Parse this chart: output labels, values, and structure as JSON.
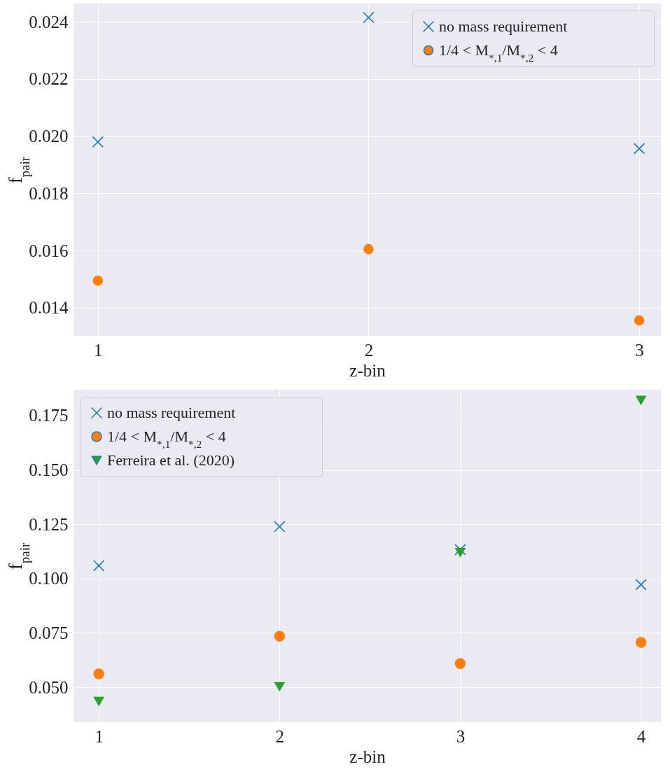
{
  "chart_data": [
    {
      "type": "scatter",
      "xlabel": "z-bin",
      "ylabel": "f$_{pair}$",
      "xlim": [
        0.91,
        3.08
      ],
      "xticks": [
        1,
        2,
        3
      ],
      "ylim": [
        0.01302,
        0.02464
      ],
      "yticks": [
        0.014,
        0.016,
        0.018,
        {
          "value": 0.02,
          "label": "0.020"
        },
        0.022,
        0.024
      ],
      "grid": true,
      "legend": "top right",
      "series": [
        {
          "name": "no mass requirement",
          "color": "#1f77b4",
          "marker": "cross",
          "x": [
            1,
            2,
            3
          ],
          "values": [
            0.0198,
            0.02415,
            0.01957
          ]
        },
        {
          "name": "1/4 < M$_{*,1}$/M$_{*,2}$ < 4",
          "color": "#ff7f0e",
          "marker": "circle",
          "x": [
            1,
            2,
            3
          ],
          "values": [
            0.01495,
            0.01605,
            0.01356
          ]
        }
      ]
    },
    {
      "type": "scatter",
      "xlabel": "z-bin",
      "ylabel": "f$_{pair}$",
      "xlim": [
        0.86,
        4.11
      ],
      "xticks": [
        1,
        2,
        3,
        4
      ],
      "ylim": [
        0.0339,
        0.1869
      ],
      "yticks": [
        {
          "value": 0.05,
          "label": "0.050"
        },
        0.075,
        {
          "value": 0.1,
          "label": "0.100"
        },
        0.125,
        {
          "value": 0.15,
          "label": "0.150"
        },
        0.175
      ],
      "grid": true,
      "legend": "top left",
      "series": [
        {
          "name": "no mass requirement",
          "color": "#1f77b4",
          "marker": "cross",
          "x": [
            1,
            2,
            3,
            4
          ],
          "values": [
            0.1059,
            0.1239,
            0.1133,
            0.0972
          ]
        },
        {
          "name": "1/4 < M$_{*,1}$/M$_{*,2}$ < 4",
          "color": "#ff7f0e",
          "marker": "circle",
          "x": [
            1,
            2,
            3,
            4
          ],
          "values": [
            0.0561,
            0.0734,
            0.0609,
            0.0706
          ]
        },
        {
          "name": "Ferreira et al. (2020)",
          "color": "#2ca02c",
          "marker": "triangle",
          "x": [
            1,
            2,
            3,
            4
          ],
          "values": [
            0.0435,
            0.0503,
            0.112,
            0.1821
          ]
        }
      ]
    }
  ]
}
